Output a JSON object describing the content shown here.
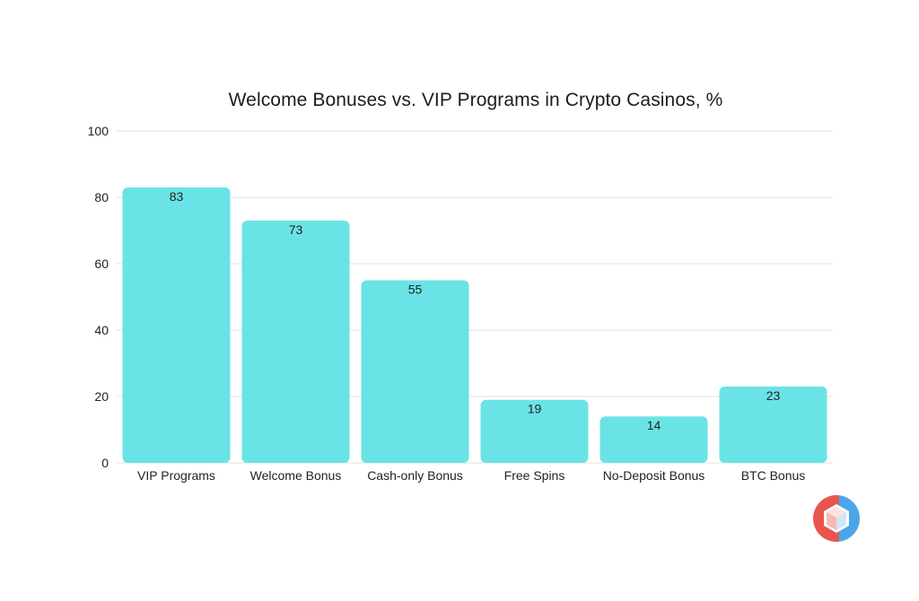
{
  "chart_data": {
    "type": "bar",
    "title": "Welcome Bonuses vs. VIP Programs in Crypto Casinos, %",
    "categories": [
      "VIP Programs",
      "Welcome Bonus",
      "Cash-only Bonus",
      "Free Spins",
      "No-Deposit Bonus",
      "BTC Bonus"
    ],
    "values": [
      83,
      73,
      55,
      19,
      14,
      23
    ],
    "ylim": [
      0,
      100
    ],
    "yticks": [
      0,
      20,
      40,
      60,
      80,
      100
    ],
    "xlabel": "",
    "ylabel": "",
    "grid": true,
    "legend": "none",
    "bar_color": "#6ae3e6",
    "grid_color": "#e2e2e2"
  },
  "logo": {
    "icon": "cube-logo-icon",
    "colors": [
      "#e8554f",
      "#4aa6e8"
    ]
  }
}
